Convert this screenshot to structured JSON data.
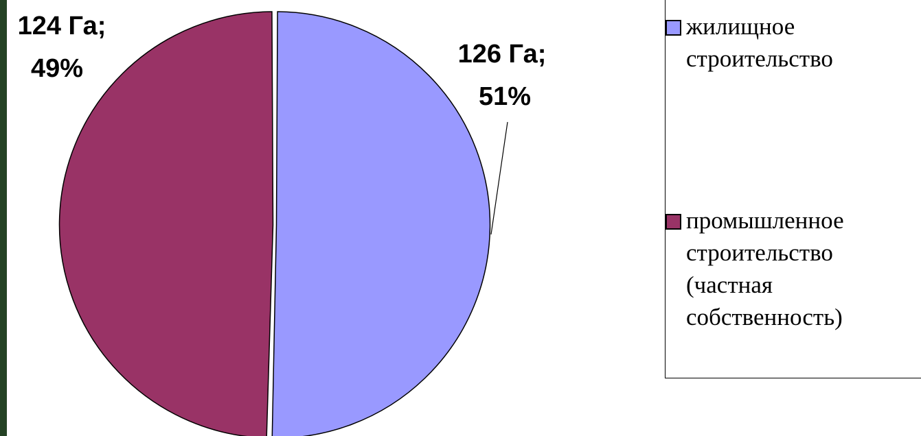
{
  "chart_data": {
    "type": "pie",
    "slices": [
      {
        "name": "жилищное\nстроительство",
        "value": 126,
        "percent": 51,
        "label_line1": "126 Га;",
        "label_line2": "51%",
        "color": "#9999ff"
      },
      {
        "name": "промышленное\nстроительство\n(частная\nсобственность)",
        "value": 124,
        "percent": 49,
        "label_line1": "124 Га;",
        "label_line2": "49%",
        "color": "#993366"
      }
    ],
    "legend_position": "right"
  }
}
